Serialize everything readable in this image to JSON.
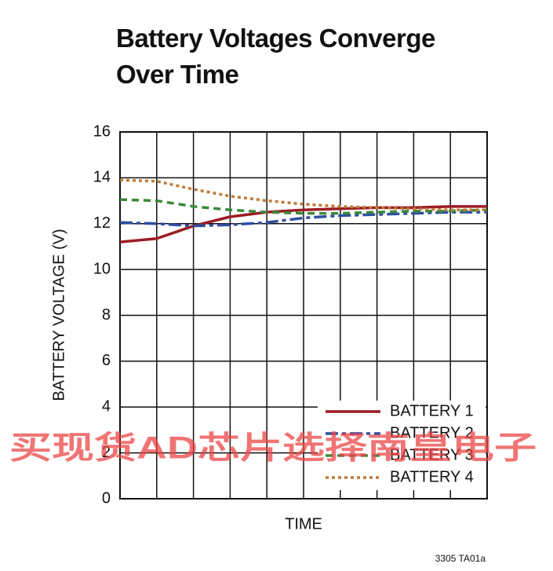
{
  "chart_data": {
    "type": "line",
    "title": "Battery Voltages Converge Over Time",
    "x_label": "TIME",
    "y_label": "BATTERY VOLTAGE (V)",
    "note": "3305 TA01a",
    "watermark": "买现货AD芯片选择南皇电子",
    "x": [
      0,
      1,
      2,
      3,
      4,
      5,
      6,
      7,
      8,
      9,
      10
    ],
    "xlim": [
      0,
      10
    ],
    "x_grid_lines": 10,
    "ylim": [
      0,
      16
    ],
    "yticks": [
      0,
      2,
      4,
      6,
      8,
      10,
      12,
      14,
      16
    ],
    "grid": true,
    "legend": "lower right",
    "series": [
      {
        "name": "BATTERY 1",
        "color": "#9b1c22",
        "style": "solid",
        "values": [
          11.2,
          11.35,
          11.9,
          12.3,
          12.5,
          12.6,
          12.65,
          12.7,
          12.7,
          12.75,
          12.75
        ]
      },
      {
        "name": "BATTERY 2",
        "color": "#2e4fa0",
        "style": "dashdot",
        "values": [
          12.05,
          12.0,
          11.9,
          11.95,
          12.05,
          12.25,
          12.35,
          12.4,
          12.45,
          12.5,
          12.5
        ]
      },
      {
        "name": "BATTERY 3",
        "color": "#3a8a3a",
        "style": "dashed",
        "values": [
          13.05,
          13.0,
          12.75,
          12.6,
          12.5,
          12.45,
          12.45,
          12.5,
          12.55,
          12.55,
          12.6
        ]
      },
      {
        "name": "BATTERY 4",
        "color": "#c07a38",
        "style": "dotted",
        "values": [
          13.9,
          13.85,
          13.5,
          13.2,
          13.0,
          12.85,
          12.75,
          12.7,
          12.65,
          12.6,
          12.6
        ]
      }
    ]
  }
}
